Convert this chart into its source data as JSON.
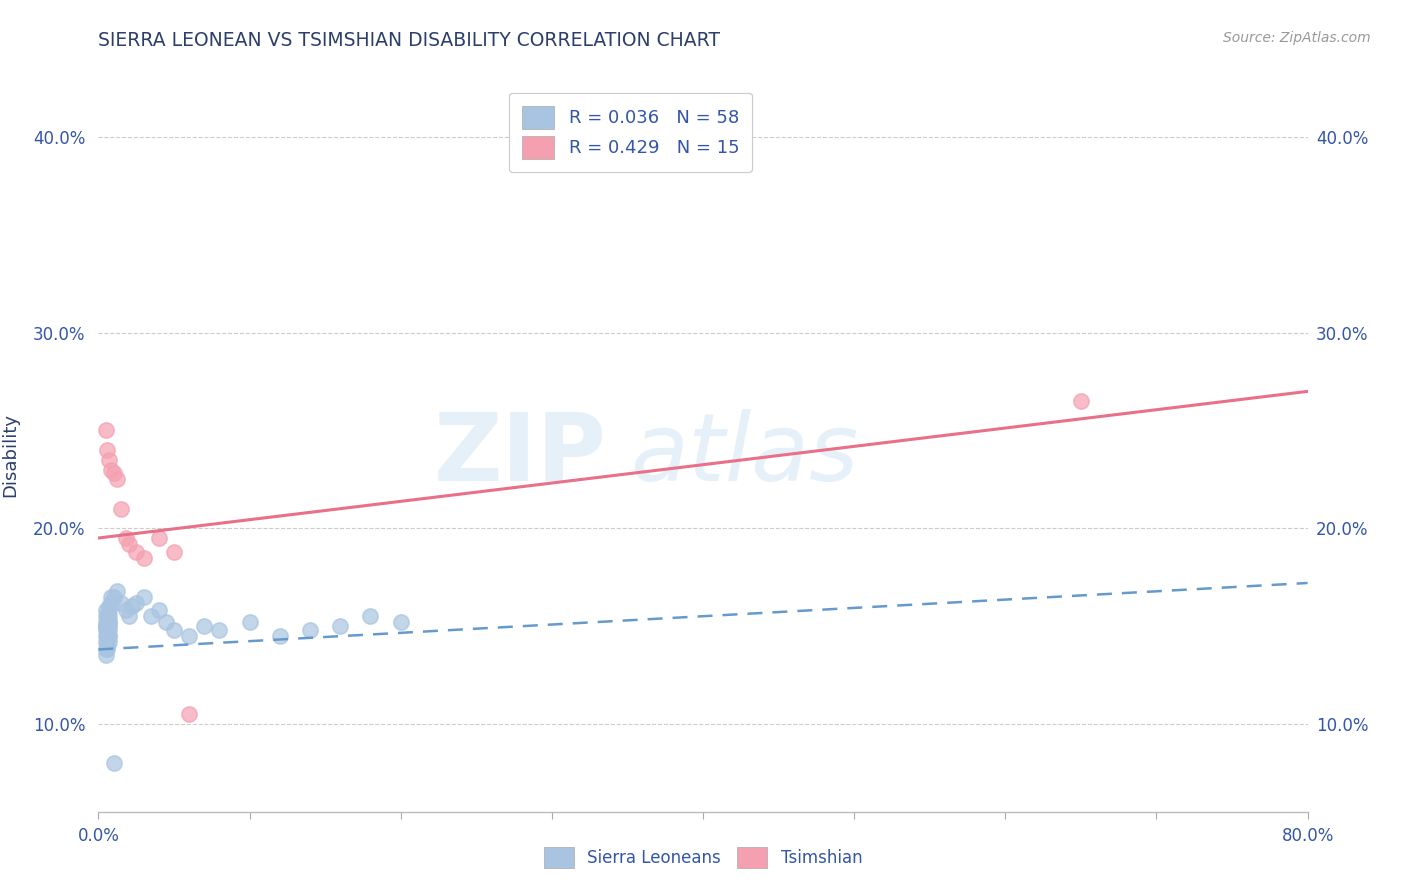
{
  "title": "SIERRA LEONEAN VS TSIMSHIAN DISABILITY CORRELATION CHART",
  "source_text": "Source: ZipAtlas.com",
  "ylabel": "Disability",
  "xlim": [
    0.0,
    0.8
  ],
  "ylim": [
    0.055,
    0.42
  ],
  "xticks": [
    0.0,
    0.1,
    0.2,
    0.3,
    0.4,
    0.5,
    0.6,
    0.7,
    0.8
  ],
  "xticklabels": [
    "0.0%",
    "",
    "",
    "",
    "",
    "",
    "",
    "",
    "80.0%"
  ],
  "yticks": [
    0.1,
    0.2,
    0.3,
    0.4
  ],
  "yticklabels": [
    "10.0%",
    "20.0%",
    "30.0%",
    "40.0%"
  ],
  "legend1_label": "R = 0.036   N = 58",
  "legend2_label": "R = 0.429   N = 15",
  "sierra_color": "#a8c4e0",
  "tsimshian_color": "#f4a0b0",
  "sierra_line_color": "#6699cc",
  "tsimshian_line_color": "#e87088",
  "watermark_zip": "ZIP",
  "watermark_atlas": "atlas",
  "title_color": "#2c3e6b",
  "axis_label_color": "#2c3e6b",
  "tick_color": "#3355aa",
  "legend_text_color": "#3355aa",
  "sierra_leonean_x": [
    0.005,
    0.007,
    0.008,
    0.005,
    0.006,
    0.007,
    0.008,
    0.006,
    0.007,
    0.006,
    0.005,
    0.006,
    0.007,
    0.005,
    0.006,
    0.006,
    0.007,
    0.005,
    0.006,
    0.007,
    0.005,
    0.006,
    0.005,
    0.007,
    0.006,
    0.005,
    0.006,
    0.007,
    0.005,
    0.006,
    0.007,
    0.005,
    0.006,
    0.007,
    0.005,
    0.006,
    0.01,
    0.012,
    0.015,
    0.018,
    0.02,
    0.022,
    0.025,
    0.03,
    0.035,
    0.04,
    0.045,
    0.05,
    0.06,
    0.07,
    0.08,
    0.1,
    0.12,
    0.14,
    0.16,
    0.18,
    0.2,
    0.01
  ],
  "sierra_leonean_y": [
    0.155,
    0.16,
    0.165,
    0.15,
    0.155,
    0.158,
    0.162,
    0.148,
    0.152,
    0.145,
    0.15,
    0.155,
    0.145,
    0.148,
    0.152,
    0.14,
    0.145,
    0.158,
    0.155,
    0.15,
    0.145,
    0.148,
    0.152,
    0.155,
    0.145,
    0.15,
    0.148,
    0.152,
    0.142,
    0.145,
    0.148,
    0.138,
    0.14,
    0.142,
    0.135,
    0.138,
    0.165,
    0.168,
    0.162,
    0.158,
    0.155,
    0.16,
    0.162,
    0.165,
    0.155,
    0.158,
    0.152,
    0.148,
    0.145,
    0.15,
    0.148,
    0.152,
    0.145,
    0.148,
    0.15,
    0.155,
    0.152,
    0.08
  ],
  "tsimshian_x": [
    0.005,
    0.006,
    0.007,
    0.008,
    0.01,
    0.012,
    0.015,
    0.018,
    0.02,
    0.025,
    0.03,
    0.04,
    0.05,
    0.06,
    0.65
  ],
  "tsimshian_y": [
    0.25,
    0.24,
    0.235,
    0.23,
    0.228,
    0.225,
    0.21,
    0.195,
    0.192,
    0.188,
    0.185,
    0.195,
    0.188,
    0.105,
    0.265
  ],
  "sl_trend_x0": 0.0,
  "sl_trend_x1": 0.8,
  "sl_trend_y0": 0.138,
  "sl_trend_y1": 0.172,
  "ts_trend_x0": 0.0,
  "ts_trend_x1": 0.8,
  "ts_trend_y0": 0.195,
  "ts_trend_y1": 0.27
}
